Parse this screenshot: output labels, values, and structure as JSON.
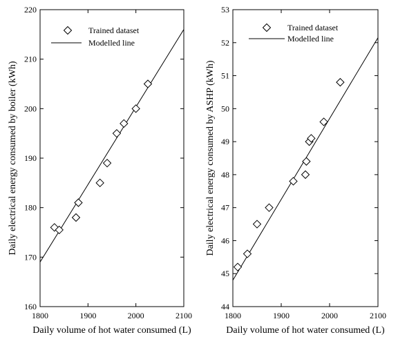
{
  "chart_data": [
    {
      "type": "scatter",
      "xlabel": "Daily volume of hot water consumed (L)",
      "ylabel": "Daily electrical energy consumed by boiler (kWh)",
      "xlim": [
        1800,
        2100
      ],
      "ylim": [
        160,
        220
      ],
      "xticks": [
        1800,
        1900,
        2000,
        2100
      ],
      "yticks": [
        160,
        170,
        180,
        190,
        200,
        210,
        220
      ],
      "legend_position": "top-left",
      "series": [
        {
          "name": "Trained dataset",
          "marker": "diamond",
          "x": [
            1830,
            1840,
            1875,
            1880,
            1925,
            1940,
            1960,
            1975,
            2000,
            2025
          ],
          "y": [
            176,
            175.5,
            178,
            181,
            185,
            189,
            195,
            197,
            200,
            205
          ]
        },
        {
          "name": "Modelled line",
          "kind": "line",
          "x": [
            1800,
            2100
          ],
          "y": [
            169,
            216
          ]
        }
      ]
    },
    {
      "type": "scatter",
      "xlabel": "Daily volume of hot water consumed (L)",
      "ylabel": "Daily electrical energy consumed by ASHP (kWh)",
      "xlim": [
        1800,
        2100
      ],
      "ylim": [
        44,
        53
      ],
      "xticks": [
        1800,
        1900,
        2000,
        2100
      ],
      "yticks": [
        44,
        45,
        46,
        47,
        48,
        49,
        50,
        51,
        52,
        53
      ],
      "legend_position": "top-left",
      "series": [
        {
          "name": "Trained dataset",
          "marker": "diamond",
          "x": [
            1810,
            1830,
            1850,
            1875,
            1925,
            1950,
            1952,
            1958,
            1962,
            1988,
            2022
          ],
          "y": [
            45.2,
            45.6,
            46.5,
            47.0,
            47.8,
            48.0,
            48.4,
            49.0,
            49.1,
            49.6,
            50.8
          ]
        },
        {
          "name": "Modelled line",
          "kind": "line",
          "x": [
            1800,
            2100
          ],
          "y": [
            44.8,
            52.15
          ]
        }
      ]
    }
  ]
}
